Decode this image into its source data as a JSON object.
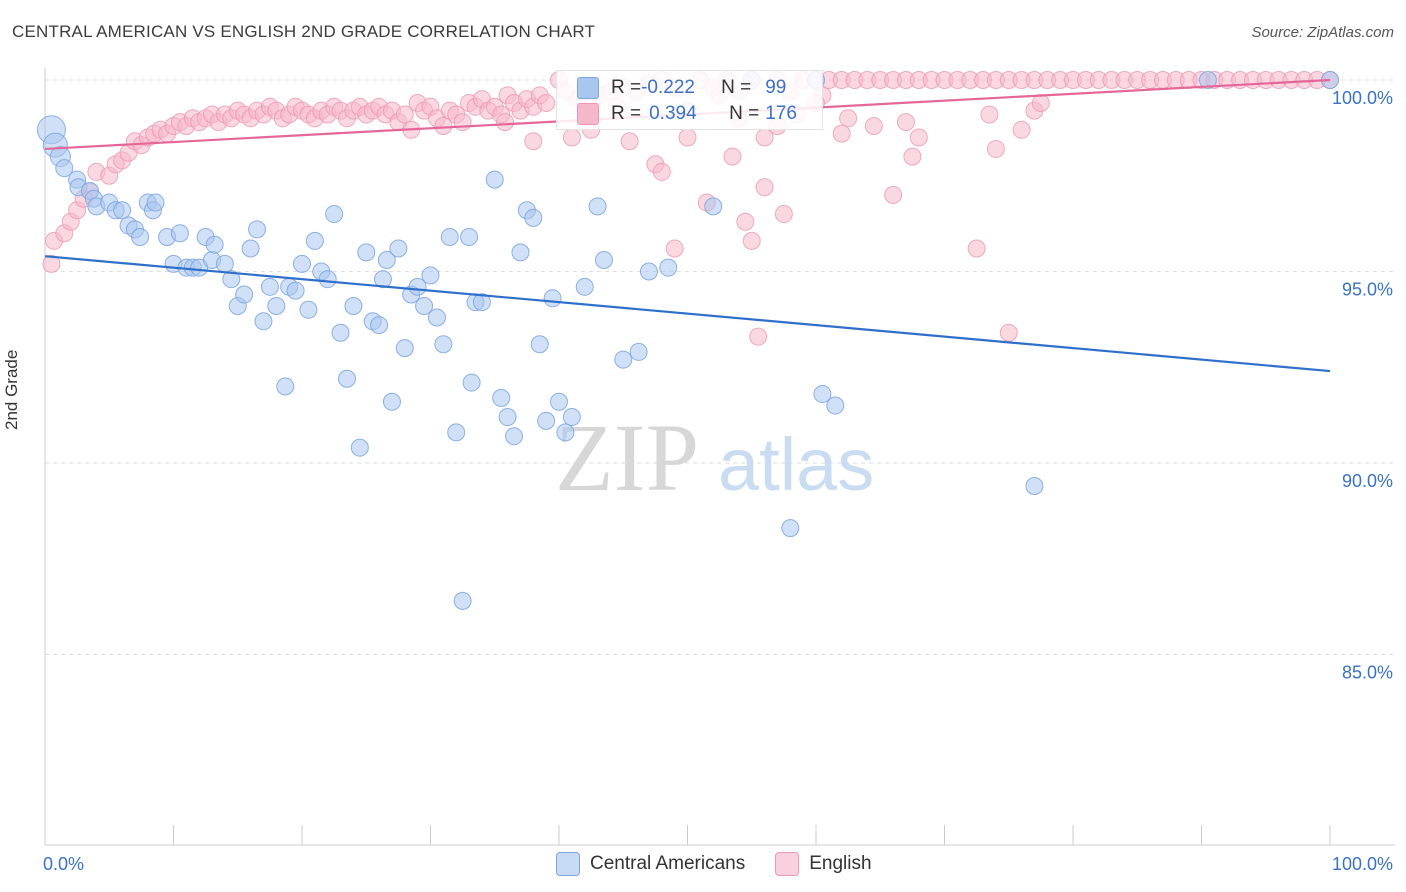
{
  "title": "CENTRAL AMERICAN VS ENGLISH 2ND GRADE CORRELATION CHART",
  "source": "Source: ZipAtlas.com",
  "watermark": {
    "zip": "ZIP",
    "atlas": "atlas"
  },
  "legend": {
    "rows": [
      {
        "r_label": "R = ",
        "r_value": "-0.222",
        "n_label": "N = ",
        "n_value": "99"
      },
      {
        "r_label": "R = ",
        "r_value": "0.394",
        "n_label": "N = ",
        "n_value": "176"
      }
    ]
  },
  "colors": {
    "blue_fill": "#a9c6ee",
    "blue_stroke": "#7aa5e0",
    "blue_line": "#2f6fcc",
    "pink_fill": "#f5b8cb",
    "pink_stroke": "#ee96b3",
    "pink_line": "#e5679a",
    "axis_label": "#3a72c4",
    "grid": "#dddddd"
  },
  "chart_data": {
    "type": "scatter",
    "xlabel": "",
    "ylabel": "2nd Grade",
    "xlim": [
      0,
      100
    ],
    "ylim": [
      80.5,
      100.6
    ],
    "x_tick_labels": [
      "0.0%",
      "100.0%"
    ],
    "y_ticks": [
      85,
      90,
      95,
      100
    ],
    "y_tick_labels": [
      "85.0%",
      "90.0%",
      "95.0%",
      "100.0%"
    ],
    "grid": true,
    "series": [
      {
        "name": "Central Americans",
        "trend": {
          "x": [
            0,
            100
          ],
          "y": [
            95.4,
            92.4
          ]
        },
        "points": [
          [
            0.5,
            98.7
          ],
          [
            0.8,
            98.3
          ],
          [
            1.2,
            98.0
          ],
          [
            1.5,
            97.7
          ],
          [
            2.5,
            97.4
          ],
          [
            2.6,
            97.2
          ],
          [
            3.5,
            97.1
          ],
          [
            3.8,
            96.9
          ],
          [
            4,
            96.7
          ],
          [
            5,
            96.8
          ],
          [
            5.5,
            96.6
          ],
          [
            6,
            96.6
          ],
          [
            6.5,
            96.2
          ],
          [
            7,
            96.1
          ],
          [
            7.4,
            95.9
          ],
          [
            8,
            96.8
          ],
          [
            8.4,
            96.6
          ],
          [
            8.6,
            96.8
          ],
          [
            9.5,
            95.9
          ],
          [
            10,
            95.2
          ],
          [
            10.5,
            96.0
          ],
          [
            11,
            95.1
          ],
          [
            11.5,
            95.1
          ],
          [
            12,
            95.1
          ],
          [
            12.5,
            95.9
          ],
          [
            13,
            95.3
          ],
          [
            13.2,
            95.7
          ],
          [
            14,
            95.2
          ],
          [
            14.5,
            94.8
          ],
          [
            15,
            94.1
          ],
          [
            15.5,
            94.4
          ],
          [
            16,
            95.6
          ],
          [
            16.5,
            96.1
          ],
          [
            17,
            93.7
          ],
          [
            17.5,
            94.6
          ],
          [
            18,
            94.1
          ],
          [
            18.7,
            92.0
          ],
          [
            19,
            94.6
          ],
          [
            19.5,
            94.5
          ],
          [
            20,
            95.2
          ],
          [
            20.5,
            94.0
          ],
          [
            21,
            95.8
          ],
          [
            21.5,
            95.0
          ],
          [
            22,
            94.8
          ],
          [
            22.5,
            96.5
          ],
          [
            23,
            93.4
          ],
          [
            23.5,
            92.2
          ],
          [
            24,
            94.1
          ],
          [
            24.5,
            90.4
          ],
          [
            25,
            95.5
          ],
          [
            25.5,
            93.7
          ],
          [
            26,
            93.6
          ],
          [
            26.3,
            94.8
          ],
          [
            26.6,
            95.3
          ],
          [
            27,
            91.6
          ],
          [
            27.5,
            95.6
          ],
          [
            28,
            93.0
          ],
          [
            28.5,
            94.4
          ],
          [
            29,
            94.6
          ],
          [
            29.5,
            94.1
          ],
          [
            30,
            94.9
          ],
          [
            30.5,
            93.8
          ],
          [
            31,
            93.1
          ],
          [
            31.5,
            95.9
          ],
          [
            32,
            90.8
          ],
          [
            33,
            95.9
          ],
          [
            33.2,
            92.1
          ],
          [
            33.5,
            94.2
          ],
          [
            34,
            94.2
          ],
          [
            35,
            97.4
          ],
          [
            35.5,
            91.7
          ],
          [
            36,
            91.2
          ],
          [
            36.5,
            90.7
          ],
          [
            37,
            95.5
          ],
          [
            37.5,
            96.6
          ],
          [
            38,
            96.4
          ],
          [
            38.5,
            93.1
          ],
          [
            39,
            91.1
          ],
          [
            39.5,
            94.3
          ],
          [
            40,
            91.6
          ],
          [
            40.5,
            90.8
          ],
          [
            41,
            91.2
          ],
          [
            42,
            94.6
          ],
          [
            43,
            96.7
          ],
          [
            43.5,
            95.3
          ],
          [
            45,
            92.7
          ],
          [
            46.2,
            92.9
          ],
          [
            47,
            95.0
          ],
          [
            48.5,
            95.1
          ],
          [
            52,
            96.7
          ],
          [
            55,
            100.0
          ],
          [
            58,
            88.3
          ],
          [
            60,
            100.0
          ],
          [
            60.5,
            91.8
          ],
          [
            61.5,
            91.5
          ],
          [
            77,
            89.4
          ],
          [
            90.5,
            100.0
          ],
          [
            100,
            100.0
          ],
          [
            32.5,
            86.4
          ]
        ]
      },
      {
        "name": "English",
        "trend": {
          "x": [
            0,
            100
          ],
          "y": [
            98.2,
            100.0
          ]
        },
        "points": [
          [
            0.5,
            95.2
          ],
          [
            0.7,
            95.8
          ],
          [
            1.5,
            96.0
          ],
          [
            2,
            96.3
          ],
          [
            2.5,
            96.6
          ],
          [
            3,
            96.9
          ],
          [
            3.5,
            97.1
          ],
          [
            4,
            97.6
          ],
          [
            5,
            97.5
          ],
          [
            5.5,
            97.8
          ],
          [
            6,
            97.9
          ],
          [
            6.5,
            98.1
          ],
          [
            7,
            98.4
          ],
          [
            7.5,
            98.3
          ],
          [
            8,
            98.5
          ],
          [
            8.5,
            98.6
          ],
          [
            9,
            98.7
          ],
          [
            9.5,
            98.6
          ],
          [
            10,
            98.8
          ],
          [
            10.5,
            98.9
          ],
          [
            11,
            98.8
          ],
          [
            11.5,
            99.0
          ],
          [
            12,
            98.9
          ],
          [
            12.5,
            99.0
          ],
          [
            13,
            99.1
          ],
          [
            13.5,
            98.9
          ],
          [
            14,
            99.1
          ],
          [
            14.5,
            99.0
          ],
          [
            15,
            99.2
          ],
          [
            15.5,
            99.1
          ],
          [
            16,
            99.0
          ],
          [
            16.5,
            99.2
          ],
          [
            17,
            99.1
          ],
          [
            17.5,
            99.3
          ],
          [
            18,
            99.2
          ],
          [
            18.5,
            99.0
          ],
          [
            19,
            99.1
          ],
          [
            19.5,
            99.3
          ],
          [
            20,
            99.2
          ],
          [
            20.5,
            99.1
          ],
          [
            21,
            99.0
          ],
          [
            21.5,
            99.2
          ],
          [
            22,
            99.1
          ],
          [
            22.5,
            99.3
          ],
          [
            23,
            99.2
          ],
          [
            23.5,
            99.0
          ],
          [
            24,
            99.2
          ],
          [
            24.5,
            99.3
          ],
          [
            25,
            99.1
          ],
          [
            25.5,
            99.2
          ],
          [
            26,
            99.3
          ],
          [
            26.5,
            99.1
          ],
          [
            27,
            99.2
          ],
          [
            27.5,
            98.9
          ],
          [
            28,
            99.1
          ],
          [
            28.5,
            98.7
          ],
          [
            29,
            99.4
          ],
          [
            29.5,
            99.2
          ],
          [
            30,
            99.3
          ],
          [
            30.5,
            99.0
          ],
          [
            31,
            98.8
          ],
          [
            31.5,
            99.2
          ],
          [
            32,
            99.1
          ],
          [
            32.5,
            98.9
          ],
          [
            33,
            99.4
          ],
          [
            33.5,
            99.3
          ],
          [
            34,
            99.5
          ],
          [
            34.5,
            99.2
          ],
          [
            35,
            99.3
          ],
          [
            35.5,
            99.1
          ],
          [
            36,
            99.6
          ],
          [
            36.5,
            99.4
          ],
          [
            37,
            99.2
          ],
          [
            37.5,
            99.5
          ],
          [
            38,
            99.3
          ],
          [
            38.5,
            99.6
          ],
          [
            39,
            99.4
          ],
          [
            40,
            100.0
          ],
          [
            40.5,
            99.7
          ],
          [
            41,
            98.5
          ],
          [
            41.5,
            99.5
          ],
          [
            42,
            99.8
          ],
          [
            42.5,
            98.7
          ],
          [
            43,
            99.6
          ],
          [
            44,
            99.7
          ],
          [
            45,
            99.8
          ],
          [
            45.5,
            98.4
          ],
          [
            46,
            99.7
          ],
          [
            47,
            99.9
          ],
          [
            48,
            100.0
          ],
          [
            49,
            99.8
          ],
          [
            50,
            98.5
          ],
          [
            51,
            100.0
          ],
          [
            51.5,
            96.8
          ],
          [
            52,
            99.8
          ],
          [
            53,
            100.0
          ],
          [
            54,
            99.7
          ],
          [
            54.5,
            96.3
          ],
          [
            55,
            100.0
          ],
          [
            56,
            98.5
          ],
          [
            57,
            100.0
          ],
          [
            58,
            99.7
          ],
          [
            59,
            100.0
          ],
          [
            60,
            100.0
          ],
          [
            60.5,
            99.6
          ],
          [
            61,
            100.0
          ],
          [
            62,
            100.0
          ],
          [
            62.5,
            99.0
          ],
          [
            63,
            100.0
          ],
          [
            64,
            100.0
          ],
          [
            64.5,
            98.8
          ],
          [
            65,
            100.0
          ],
          [
            66,
            100.0
          ],
          [
            67,
            100.0
          ],
          [
            68,
            100.0
          ],
          [
            69,
            100.0
          ],
          [
            70,
            100.0
          ],
          [
            71,
            100.0
          ],
          [
            72,
            100.0
          ],
          [
            73,
            100.0
          ],
          [
            74,
            100.0
          ],
          [
            75,
            100.0
          ],
          [
            76,
            100.0
          ],
          [
            77,
            100.0
          ],
          [
            78,
            100.0
          ],
          [
            79,
            100.0
          ],
          [
            80,
            100.0
          ],
          [
            81,
            100.0
          ],
          [
            82,
            100.0
          ],
          [
            83,
            100.0
          ],
          [
            84,
            100.0
          ],
          [
            85,
            100.0
          ],
          [
            86,
            100.0
          ],
          [
            87,
            100.0
          ],
          [
            88,
            100.0
          ],
          [
            89,
            100.0
          ],
          [
            90,
            100.0
          ],
          [
            91,
            100.0
          ],
          [
            92,
            100.0
          ],
          [
            93,
            100.0
          ],
          [
            94,
            100.0
          ],
          [
            95,
            100.0
          ],
          [
            96,
            100.0
          ],
          [
            97,
            100.0
          ],
          [
            98,
            100.0
          ],
          [
            99,
            100.0
          ],
          [
            100,
            100.0
          ],
          [
            47.5,
            97.8
          ],
          [
            49,
            95.6
          ],
          [
            53.5,
            98.0
          ],
          [
            55,
            95.8
          ],
          [
            56,
            97.2
          ],
          [
            57.5,
            96.5
          ],
          [
            62,
            98.6
          ],
          [
            66,
            97.0
          ],
          [
            67,
            98.9
          ],
          [
            67.5,
            98.0
          ],
          [
            72.5,
            95.6
          ],
          [
            75,
            93.4
          ],
          [
            76,
            98.7
          ],
          [
            77,
            99.2
          ],
          [
            77.5,
            99.4
          ],
          [
            38,
            98.4
          ],
          [
            44.5,
            99.3
          ],
          [
            50,
            99.2
          ],
          [
            54,
            99.0
          ],
          [
            57,
            98.8
          ],
          [
            58.5,
            99.1
          ],
          [
            60,
            99.4
          ],
          [
            35.8,
            98.9
          ],
          [
            48,
            97.6
          ],
          [
            52.5,
            99.6
          ],
          [
            55.5,
            93.3
          ],
          [
            68,
            98.5
          ],
          [
            73.5,
            99.1
          ],
          [
            74,
            98.2
          ]
        ]
      }
    ]
  }
}
